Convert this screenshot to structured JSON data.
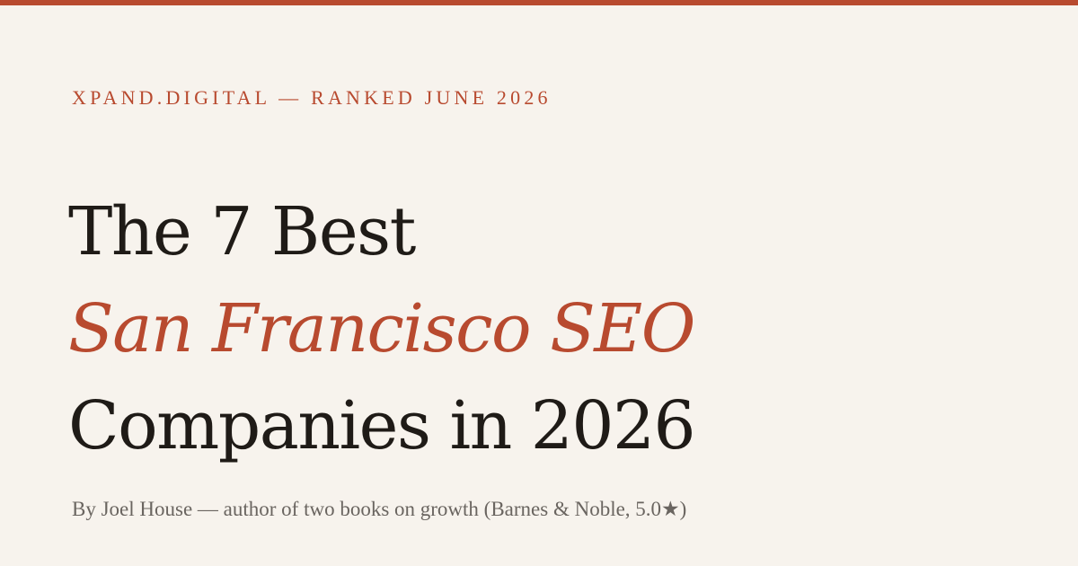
{
  "brand": {
    "eyebrow": "XPAND.DIGITAL — RANKED JUNE 2026",
    "accent_color": "#b84a2f",
    "background_color": "#f7f3ed",
    "text_color": "#1f1b17"
  },
  "headline": {
    "line1": "The 7 Best",
    "line2": "San Francisco SEO",
    "line3": "Companies in 2026"
  },
  "byline": {
    "text": "By Joel House — author of two books on growth (Barnes & Noble, 5.0★)"
  }
}
